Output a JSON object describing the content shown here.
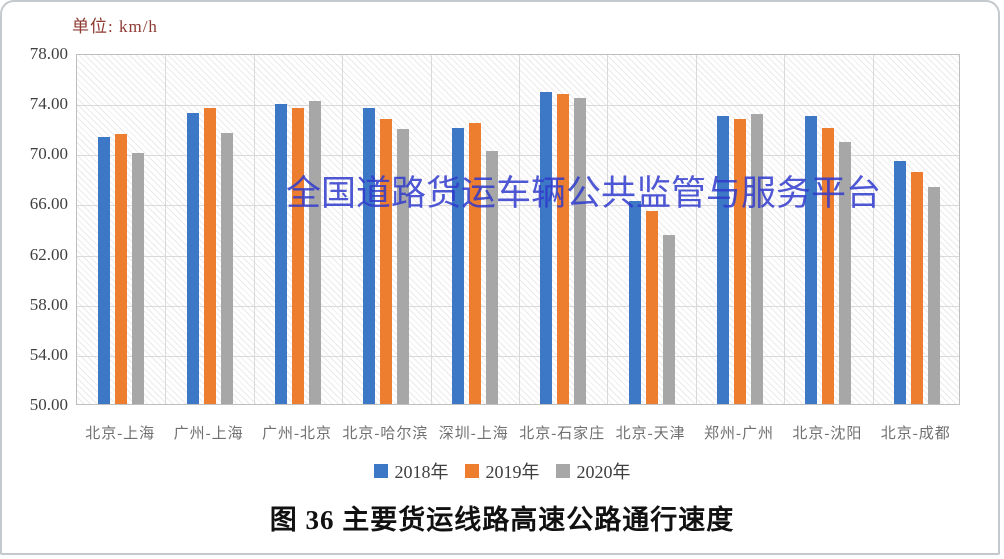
{
  "unit_label": "单位: km/h",
  "watermark": {
    "text": "全国道路货运车辆公共监管与服务平台",
    "color": "#2f3acd"
  },
  "caption": "图 36 主要货运线路高速公路通行速度",
  "chart_data": {
    "type": "bar",
    "title": "图 36 主要货运线路高速公路通行速度",
    "xlabel": "",
    "ylabel": "单位: km/h",
    "categories": [
      "北京-上海",
      "广州-上海",
      "广州-北京",
      "北京-哈尔滨",
      "深圳-上海",
      "北京-石家庄",
      "北京-天津",
      "郑州-广州",
      "北京-沈阳",
      "北京-成都"
    ],
    "series": [
      {
        "name": "2018年",
        "color": "#3d78c6",
        "values": [
          71.3,
          73.2,
          73.9,
          73.6,
          72.0,
          74.9,
          66.2,
          73.0,
          73.0,
          69.4
        ]
      },
      {
        "name": "2019年",
        "color": "#ed7d2f",
        "values": [
          71.5,
          73.6,
          73.6,
          72.7,
          72.4,
          74.7,
          65.4,
          72.7,
          72.0,
          68.5
        ]
      },
      {
        "name": "2020年",
        "color": "#a7a7a7",
        "values": [
          70.0,
          71.6,
          74.2,
          71.9,
          70.2,
          74.4,
          63.5,
          73.1,
          70.9,
          67.3
        ]
      }
    ],
    "ylim": [
      50,
      78
    ],
    "ytick_step": 4,
    "ytick_decimals": 2,
    "grid": true,
    "legend_position": "bottom"
  }
}
